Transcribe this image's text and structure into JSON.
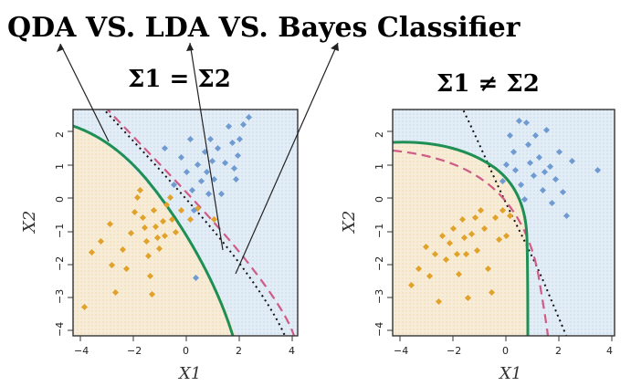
{
  "title": "QDA VS. LDA VS. Bayes Classifier",
  "colors": {
    "class1_points": "#e0a22a",
    "class2_points": "#6f9bd1",
    "class1_region": "#f4e7cf",
    "class2_region": "#dbe7f1",
    "qda_curve": "#1f8f55",
    "lda_curve": "#cf5b86",
    "bayes_curve": "#111111"
  },
  "panels": [
    {
      "heading": "Σ1 = Σ2",
      "xlabel": "X1",
      "ylabel": "X2",
      "xlim": [
        -4.2,
        4.2
      ],
      "ylim": [
        -4.2,
        2.8
      ],
      "x_ticks": [
        -4,
        -2,
        0,
        2,
        4
      ],
      "y_ticks": [
        -4,
        -3,
        -2,
        -1,
        0,
        1,
        2
      ]
    },
    {
      "heading": "Σ1 ≠ Σ2",
      "xlabel": "X1",
      "ylabel": "X2",
      "xlim": [
        -4.2,
        4.2
      ],
      "ylim": [
        -4.2,
        2.8
      ],
      "x_ticks": [
        -4,
        -2,
        0,
        2,
        4
      ],
      "y_ticks": [
        -4,
        -3,
        -2,
        -1,
        0,
        1,
        2
      ]
    }
  ]
}
